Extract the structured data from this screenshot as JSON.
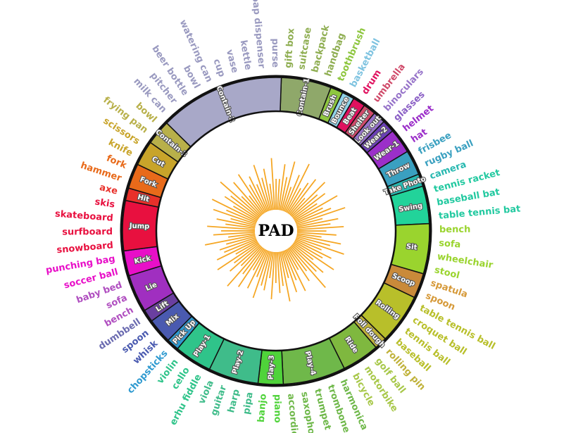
{
  "center_label": "PAD",
  "colors": {
    "bars": "#f5a623",
    "ring_outline": "#111111",
    "background": "#ffffff"
  },
  "segments": [
    {
      "label": "Contain-1",
      "color": "#8fa86a",
      "objects": [
        "gift box",
        "suitcase",
        "backpack",
        "handbag"
      ]
    },
    {
      "label": "Brush",
      "color": "#8ec63f",
      "objects": [
        "toothbrush"
      ]
    },
    {
      "label": "Bounce",
      "color": "#8fd1e8",
      "objects": [
        "basketball"
      ]
    },
    {
      "label": "Beat",
      "color": "#e0115f",
      "objects": [
        "drum"
      ]
    },
    {
      "label": "Shelter",
      "color": "#d04a6a",
      "objects": [
        "umbrella"
      ]
    },
    {
      "label": "Look out",
      "color": "#9673c9",
      "objects": [
        "binoculars"
      ]
    },
    {
      "label": "Wear-2",
      "color": "#6a3fb5",
      "objects": [
        "glasses"
      ]
    },
    {
      "label": "Wear-1",
      "color": "#9b2fc9",
      "objects": [
        "helmet",
        "hat"
      ]
    },
    {
      "label": "Throw",
      "color": "#3aa0c0",
      "objects": [
        "frisbee",
        "rugby ball"
      ]
    },
    {
      "label": "Take Photo",
      "color": "#27b8b0",
      "objects": [
        "camera"
      ]
    },
    {
      "label": "Swing",
      "color": "#22d39a",
      "objects": [
        "tennis racket",
        "baseball bat",
        "table tennis bat"
      ]
    },
    {
      "label": "Sit",
      "color": "#9ad42e",
      "objects": [
        "bench",
        "sofa",
        "wheelchair",
        "stool"
      ]
    },
    {
      "label": "Scoop",
      "color": "#c98a3a",
      "objects": [
        "spatula",
        "spoon"
      ]
    },
    {
      "label": "Rolling",
      "color": "#b8bf2a",
      "objects": [
        "table tennis ball",
        "croquet ball",
        "tennis ball",
        "baseball"
      ]
    },
    {
      "label": "Roll dough",
      "color": "#c0b23a",
      "objects": [
        "rolling pin"
      ]
    },
    {
      "label": "Ride",
      "color": "#7fb83f",
      "objects": [
        "golf ball",
        "motorbike",
        "bicycle"
      ]
    },
    {
      "label": "Play-4",
      "color": "#6fb84a",
      "objects": [
        "harmonica",
        "trombone",
        "trumpet",
        "saxophone",
        "accordion"
      ]
    },
    {
      "label": "Play-3",
      "color": "#4fd33a",
      "objects": [
        "piano",
        "banjo"
      ]
    },
    {
      "label": "Play-2",
      "color": "#3fbc8a",
      "objects": [
        "pipa",
        "harp",
        "guitar",
        "viola"
      ]
    },
    {
      "label": "Play-1",
      "color": "#2fc48a",
      "objects": [
        "erhu fiddle",
        "cello",
        "violin"
      ]
    },
    {
      "label": "Pick Up",
      "color": "#2f9ad0",
      "objects": [
        "chopsticks"
      ]
    },
    {
      "label": "Mix",
      "color": "#4a5ab0",
      "objects": [
        "whisk",
        "spoon"
      ]
    },
    {
      "label": "Lift",
      "color": "#6a3fa0",
      "objects": [
        "dumbbell"
      ]
    },
    {
      "label": "Lie",
      "color": "#a02fc0",
      "objects": [
        "bench",
        "sofa",
        "baby bed"
      ]
    },
    {
      "label": "Kick",
      "color": "#e80fc8",
      "objects": [
        "soccer ball",
        "punching bag"
      ]
    },
    {
      "label": "Jump",
      "color": "#e8103f",
      "objects": [
        "snowboard",
        "surfboard",
        "skateboard",
        "skis"
      ]
    },
    {
      "label": "Hit",
      "color": "#e8302a",
      "objects": [
        "axe"
      ]
    },
    {
      "label": "Fork",
      "color": "#e86a1a",
      "objects": [
        "hammer",
        "fork"
      ]
    },
    {
      "label": "Cut",
      "color": "#c8a42a",
      "objects": [
        "knife",
        "scissors"
      ]
    },
    {
      "label": "Contain-3",
      "color": "#b8b04a",
      "objects": [
        "frying pan",
        "bowl"
      ]
    },
    {
      "label": "Contain-2",
      "color": "#a8a8c8",
      "objects": [
        "milk can",
        "pitcher",
        "beer bottle",
        "bowl",
        "watering can",
        "cup",
        "vase",
        "kettle",
        "soap dispenser",
        "purse"
      ]
    }
  ],
  "object_colors": {
    "Contain-1": "#8fae52",
    "Brush": "#8ec63f",
    "Bounce": "#7ec3e0",
    "Beat": "#e0115f",
    "Shelter": "#d04a6a",
    "Look out": "#9673c9",
    "Wear-2": "#8a5fc5",
    "Wear-1": "#9b2fc9",
    "Throw": "#3aa0c0",
    "Take Photo": "#27b8b0",
    "Swing": "#22c9a0",
    "Sit": "#9ad42e",
    "Scoop": "#d69a3a",
    "Rolling": "#b8bf2a",
    "Roll dough": "#c0b23a",
    "Ride": "#a8c84a",
    "Play-4": "#6fb84a",
    "Play-3": "#4fd33a",
    "Play-2": "#3fbc8a",
    "Play-1": "#2fc48a",
    "Pick Up": "#2f9ad0",
    "Mix": "#4a5ab0",
    "Lift": "#6a6ab0",
    "Lie": "#b04fc0",
    "Kick": "#e80fc8",
    "Jump": "#e8103f",
    "Hit": "#e8302a",
    "Fork": "#e86a1a",
    "Cut": "#c8a42a",
    "Contain-3": "#b8b04a",
    "Contain-2": "#9a9ac0"
  },
  "bar_values": [
    0.55,
    0.82,
    0.6,
    0.9,
    0.45,
    0.7,
    0.95,
    0.5,
    0.65,
    0.78,
    0.4,
    0.85,
    0.6,
    0.72,
    0.5,
    0.88,
    0.55,
    0.68,
    0.92,
    0.48,
    0.75,
    0.6,
    0.83,
    0.52,
    0.7,
    0.44,
    0.8,
    0.62,
    0.9,
    0.5,
    0.72,
    0.58,
    0.86,
    0.46,
    0.74,
    0.64,
    0.96,
    0.52,
    0.69,
    0.42,
    0.81,
    0.57,
    0.77,
    0.49,
    0.9,
    0.61,
    0.73,
    0.55,
    0.84,
    0.47,
    0.7,
    0.63,
    0.88,
    0.51,
    0.76,
    0.43,
    0.82,
    0.59,
    0.93,
    0.5,
    0.71,
    0.56,
    0.87,
    0.45,
    0.79,
    0.62,
    0.68,
    0.54,
    0.91,
    0.48,
    0.74,
    0.6,
    0.85,
    0.53,
    0.7,
    0.46,
    0.8,
    0.58,
    0.89,
    0.5,
    0.72,
    0.64,
    0.94,
    0.49,
    0.77,
    0.41,
    0.83,
    0.57,
    0.7,
    0.52,
    0.86,
    0.6,
    0.75,
    0.47,
    0.92,
    0.55
  ]
}
